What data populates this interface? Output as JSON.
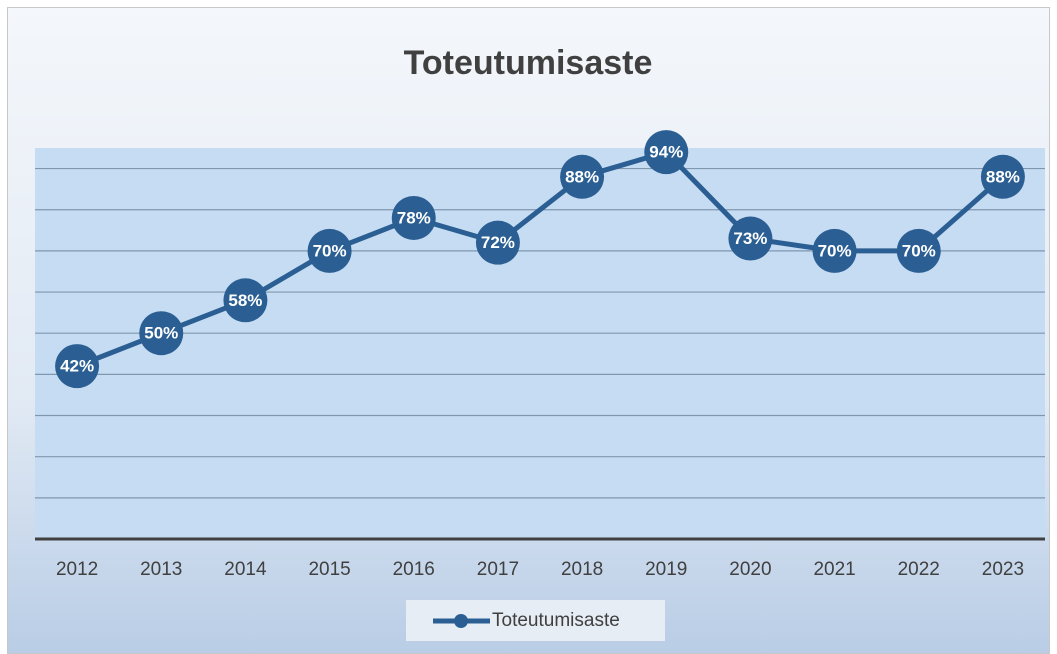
{
  "chart_data": {
    "type": "line",
    "title": "Toteutumisaste",
    "categories": [
      "2012",
      "2013",
      "2014",
      "2015",
      "2016",
      "2017",
      "2018",
      "2019",
      "2020",
      "2021",
      "2022",
      "2023"
    ],
    "series": [
      {
        "name": "Toteutumisaste",
        "color": "#2b5f93",
        "values": [
          42,
          50,
          58,
          70,
          78,
          72,
          88,
          94,
          73,
          70,
          70,
          88
        ],
        "value_labels": [
          "42%",
          "50%",
          "58%",
          "70%",
          "78%",
          "72%",
          "88%",
          "94%",
          "73%",
          "70%",
          "70%",
          "88%"
        ]
      }
    ],
    "ylim": [
      0,
      95
    ],
    "yticks": [
      0,
      10,
      20,
      30,
      40,
      50,
      60,
      70,
      80,
      90
    ],
    "grid": true,
    "legend": "bottom"
  }
}
